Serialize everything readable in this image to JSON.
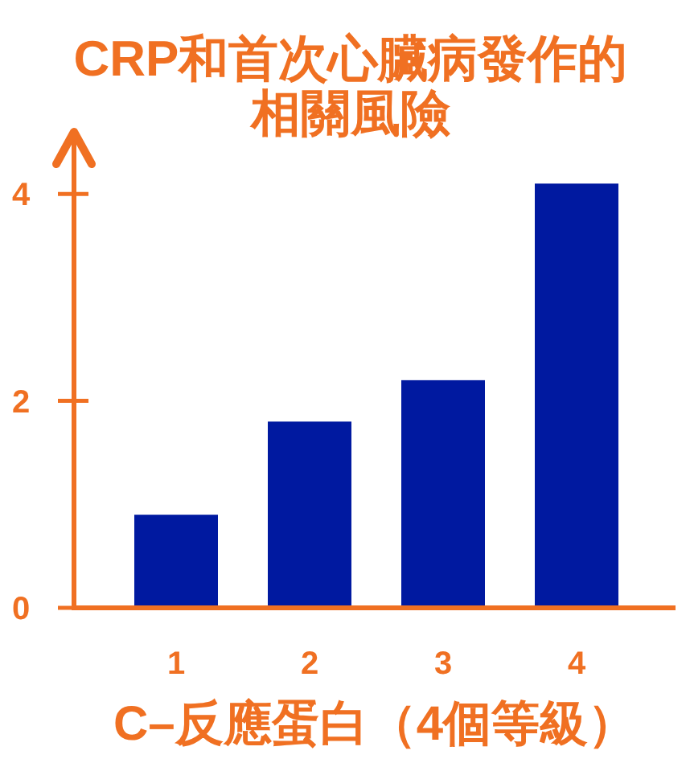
{
  "chart_data": {
    "type": "bar",
    "title": "CRP和首次心臟病發作的相關風險",
    "xlabel": "C–反應蛋白（4個等級）",
    "categories": [
      "1",
      "2",
      "3",
      "4"
    ],
    "values": [
      0.9,
      1.8,
      2.2,
      4.1
    ],
    "color": "#0019a0",
    "ylim": [
      0,
      4.6
    ],
    "yticks": [
      0,
      2,
      4
    ]
  }
}
